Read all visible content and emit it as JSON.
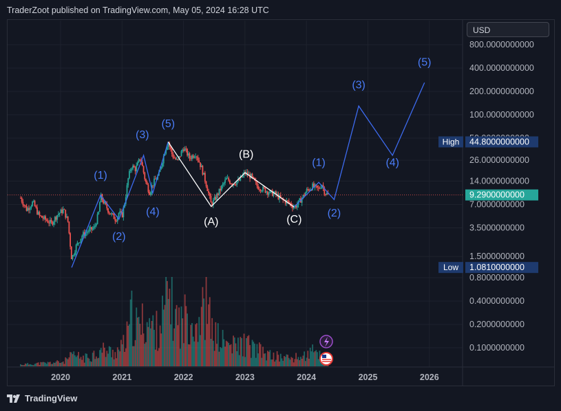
{
  "header": {
    "published": "TraderZoot published on TradingView.com, May 05, 2024 16:28 UTC"
  },
  "currency": "USD",
  "footer": {
    "brand": "TradingView",
    "logo_icon": "tradingview-logo-icon"
  },
  "colors": {
    "background": "#131722",
    "up": "#26a69a",
    "down": "#ef5350",
    "wave": "#3d6bf0",
    "wave_label": "#4a7cf7",
    "corrective": "#ffffff",
    "high_badge": "#1e3a6e",
    "last_price_badge": "#26a69a",
    "grid": "#1e222d"
  },
  "chart_data": {
    "type": "candlestick",
    "symbol_scale": "log",
    "yaxis_ticks": [
      "800.0000000000",
      "400.0000000000",
      "200.0000000000",
      "100.0000000000",
      "50.0000000000",
      "26.0000000000",
      "14.0000000000",
      "7.0000000000",
      "3.5000000000",
      "1.5000000000",
      "0.8000000000",
      "0.4000000000",
      "0.2000000000",
      "0.1000000000"
    ],
    "xaxis_ticks": [
      "2020",
      "2021",
      "2022",
      "2023",
      "2024",
      "2025",
      "2026"
    ],
    "price_labels": {
      "high_label": "High",
      "high_value": "44.8000000000",
      "low_label": "Low",
      "low_value": "1.0810000000",
      "last_value": "9.2900000000"
    },
    "price_series": [
      [
        2019.35,
        8.5
      ],
      [
        2019.45,
        6
      ],
      [
        2019.55,
        7.5
      ],
      [
        2019.65,
        5
      ],
      [
        2019.75,
        4.5
      ],
      [
        2019.85,
        4
      ],
      [
        2019.95,
        5.2
      ],
      [
        2020.05,
        6
      ],
      [
        2020.12,
        4.2
      ],
      [
        2020.18,
        1.4
      ],
      [
        2020.25,
        2
      ],
      [
        2020.35,
        2.8
      ],
      [
        2020.45,
        3.2
      ],
      [
        2020.55,
        3.5
      ],
      [
        2020.62,
        5.5
      ],
      [
        2020.65,
        9
      ],
      [
        2020.72,
        7
      ],
      [
        2020.8,
        5.5
      ],
      [
        2020.9,
        4.5
      ],
      [
        2020.95,
        5.5
      ],
      [
        2021.0,
        5
      ],
      [
        2021.05,
        8
      ],
      [
        2021.1,
        15
      ],
      [
        2021.15,
        22
      ],
      [
        2021.22,
        20
      ],
      [
        2021.3,
        28
      ],
      [
        2021.38,
        14
      ],
      [
        2021.45,
        10
      ],
      [
        2021.5,
        13
      ],
      [
        2021.6,
        17
      ],
      [
        2021.7,
        35
      ],
      [
        2021.75,
        44.8
      ],
      [
        2021.82,
        30
      ],
      [
        2021.9,
        25
      ],
      [
        2022.0,
        38
      ],
      [
        2022.1,
        28
      ],
      [
        2022.2,
        32
      ],
      [
        2022.3,
        20
      ],
      [
        2022.38,
        12
      ],
      [
        2022.45,
        7
      ],
      [
        2022.5,
        8
      ],
      [
        2022.6,
        11
      ],
      [
        2022.7,
        15
      ],
      [
        2022.8,
        13
      ],
      [
        2022.9,
        14
      ],
      [
        2023.0,
        18
      ],
      [
        2023.1,
        16
      ],
      [
        2023.2,
        12
      ],
      [
        2023.3,
        11
      ],
      [
        2023.4,
        10
      ],
      [
        2023.5,
        9.5
      ],
      [
        2023.6,
        8
      ],
      [
        2023.7,
        7.5
      ],
      [
        2023.8,
        6.5
      ],
      [
        2023.85,
        7
      ],
      [
        2023.95,
        9
      ],
      [
        2024.0,
        10.5
      ],
      [
        2024.1,
        12
      ],
      [
        2024.2,
        11
      ],
      [
        2024.25,
        13
      ],
      [
        2024.3,
        10
      ],
      [
        2024.35,
        9.29
      ]
    ],
    "volume_series": [
      [
        2019.35,
        0.02
      ],
      [
        2019.6,
        0.03
      ],
      [
        2019.85,
        0.04
      ],
      [
        2020.05,
        0.05
      ],
      [
        2020.2,
        0.12
      ],
      [
        2020.4,
        0.09
      ],
      [
        2020.55,
        0.14
      ],
      [
        2020.7,
        0.18
      ],
      [
        2020.85,
        0.15
      ],
      [
        2021.0,
        0.2
      ],
      [
        2021.1,
        0.35
      ],
      [
        2021.15,
        0.55
      ],
      [
        2021.25,
        0.42
      ],
      [
        2021.4,
        0.5
      ],
      [
        2021.55,
        0.38
      ],
      [
        2021.7,
        0.6
      ],
      [
        2021.76,
        0.85
      ],
      [
        2021.85,
        0.55
      ],
      [
        2022.0,
        0.45
      ],
      [
        2022.05,
        0.62
      ],
      [
        2022.2,
        0.48
      ],
      [
        2022.3,
        0.58
      ],
      [
        2022.38,
        0.7
      ],
      [
        2022.45,
        0.4
      ],
      [
        2022.6,
        0.28
      ],
      [
        2022.8,
        0.22
      ],
      [
        2023.0,
        0.25
      ],
      [
        2023.2,
        0.18
      ],
      [
        2023.4,
        0.12
      ],
      [
        2023.6,
        0.1
      ],
      [
        2023.8,
        0.09
      ],
      [
        2024.0,
        0.12
      ],
      [
        2024.1,
        0.16
      ],
      [
        2024.2,
        0.14
      ],
      [
        2024.3,
        0.1
      ]
    ],
    "impulse_path": [
      [
        2020.18,
        1.08
      ],
      [
        2020.65,
        9.2
      ],
      [
        2020.95,
        4.5
      ],
      [
        2021.35,
        30
      ],
      [
        2021.5,
        9.8
      ],
      [
        2021.75,
        44.8
      ]
    ],
    "corrective_path": [
      [
        2021.75,
        44.8
      ],
      [
        2022.45,
        6.6
      ],
      [
        2023.0,
        18
      ],
      [
        2023.8,
        6.5
      ]
    ],
    "projection_path": [
      [
        2023.8,
        6.5
      ],
      [
        2024.2,
        13.5
      ],
      [
        2024.45,
        8.1
      ],
      [
        2024.85,
        130
      ],
      [
        2025.4,
        30
      ],
      [
        2025.92,
        260
      ]
    ],
    "wave_labels": [
      {
        "text": "(1)",
        "x": 2020.65,
        "y": 15,
        "color": "wave"
      },
      {
        "text": "(2)",
        "x": 2020.95,
        "y": 2.45,
        "color": "wave"
      },
      {
        "text": "(3)",
        "x": 2021.33,
        "y": 50,
        "color": "wave"
      },
      {
        "text": "(4)",
        "x": 2021.5,
        "y": 5.1,
        "color": "wave"
      },
      {
        "text": "(5)",
        "x": 2021.75,
        "y": 69,
        "color": "wave"
      },
      {
        "text": "(A)",
        "x": 2022.45,
        "y": 3.8,
        "color": "corrective"
      },
      {
        "text": "(B)",
        "x": 2023.02,
        "y": 28,
        "color": "corrective"
      },
      {
        "text": "(C)",
        "x": 2023.8,
        "y": 4.1,
        "color": "corrective"
      },
      {
        "text": "(1)",
        "x": 2024.2,
        "y": 22,
        "color": "wave"
      },
      {
        "text": "(2)",
        "x": 2024.45,
        "y": 4.9,
        "color": "wave"
      },
      {
        "text": "(3)",
        "x": 2024.85,
        "y": 220,
        "color": "wave"
      },
      {
        "text": "(4)",
        "x": 2025.4,
        "y": 22,
        "color": "wave"
      },
      {
        "text": "(5)",
        "x": 2025.92,
        "y": 430,
        "color": "wave"
      }
    ]
  }
}
